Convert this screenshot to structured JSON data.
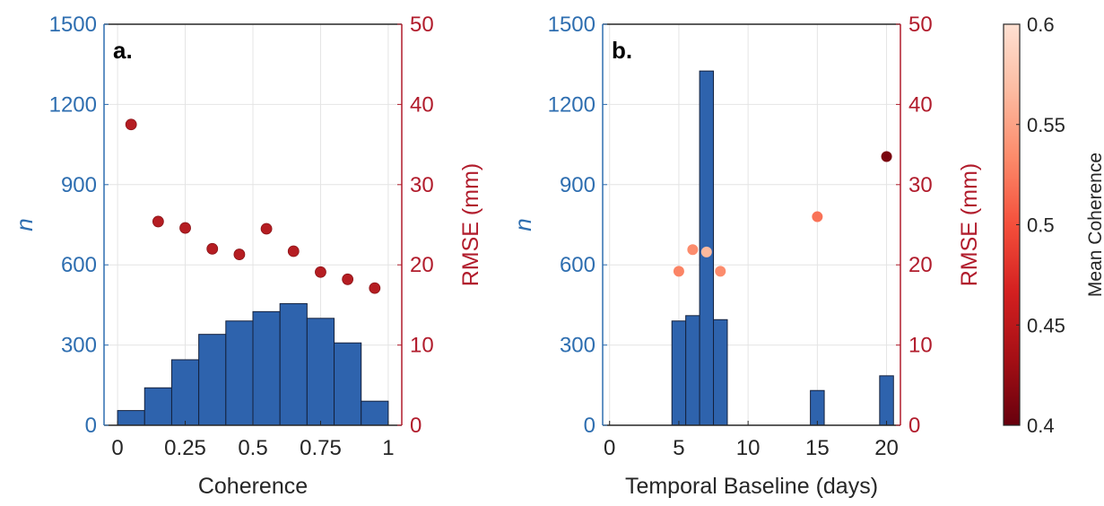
{
  "chart_data": [
    {
      "type": "bar",
      "panel_label": "a.",
      "title": "",
      "xlabel": "Coherence",
      "ylabel_left": "n",
      "ylabel_right": "RMSE (mm)",
      "xlim": [
        -0.05,
        1.05
      ],
      "ylim_left": [
        0,
        1500
      ],
      "ylim_right": [
        0,
        50
      ],
      "xticks": [
        "0",
        "0.25",
        "0.5",
        "0.75",
        "1"
      ],
      "xtick_values": [
        0,
        0.25,
        0.5,
        0.75,
        1
      ],
      "yticks_left": [
        "0",
        "300",
        "600",
        "900",
        "1200",
        "1500"
      ],
      "yticks_right": [
        "0",
        "10",
        "20",
        "30",
        "40",
        "50"
      ],
      "grid": true,
      "bar_color": "#2e63ad",
      "point_color": "#b51d22",
      "bars": {
        "bin_edges": [
          0,
          0.1,
          0.2,
          0.3,
          0.4,
          0.5,
          0.6,
          0.7,
          0.8,
          0.9,
          1.0
        ],
        "counts": [
          55,
          140,
          245,
          340,
          390,
          425,
          455,
          400,
          308,
          90
        ]
      },
      "points": {
        "name": "RMSE",
        "x": [
          0.05,
          0.15,
          0.25,
          0.35,
          0.45,
          0.55,
          0.65,
          0.75,
          0.85,
          0.95
        ],
        "y": [
          37.5,
          25.4,
          24.6,
          22.0,
          21.3,
          24.5,
          21.7,
          19.1,
          18.2,
          17.1
        ]
      }
    },
    {
      "type": "bar",
      "panel_label": "b.",
      "title": "",
      "xlabel": "Temporal Baseline (days)",
      "ylabel_left": "n",
      "ylabel_right": "RMSE (mm)",
      "xlim": [
        -0.5,
        21
      ],
      "ylim_left": [
        0,
        1500
      ],
      "ylim_right": [
        0,
        50
      ],
      "xticks": [
        "0",
        "5",
        "10",
        "15",
        "20"
      ],
      "xtick_values": [
        0,
        5,
        10,
        15,
        20
      ],
      "yticks_left": [
        "0",
        "300",
        "600",
        "900",
        "1200",
        "1500"
      ],
      "yticks_right": [
        "0",
        "10",
        "20",
        "30",
        "40",
        "50"
      ],
      "grid": true,
      "bar_color": "#2e63ad",
      "bars": {
        "centers": [
          5,
          6,
          7,
          8,
          15,
          20
        ],
        "width": 1,
        "counts": [
          390,
          410,
          1325,
          395,
          130,
          185
        ]
      },
      "points": {
        "name": "RMSE",
        "x": [
          5,
          6,
          7,
          8,
          15,
          20
        ],
        "y": [
          19.2,
          21.9,
          21.6,
          19.2,
          26.0,
          33.5
        ],
        "mean_coherence": [
          0.53,
          0.535,
          0.565,
          0.535,
          0.52,
          0.41
        ]
      },
      "colorbar": {
        "label": "Mean Coherence",
        "range": [
          0.4,
          0.6
        ],
        "ticks": [
          "0.4",
          "0.45",
          "0.5",
          "0.55",
          "0.6"
        ],
        "tick_values": [
          0.4,
          0.45,
          0.5,
          0.55,
          0.6
        ],
        "colormap": [
          "#67000d",
          "#a50f15",
          "#d42020",
          "#f44f3b",
          "#fc8a6a",
          "#fcbba1",
          "#fee0d2"
        ]
      }
    }
  ]
}
